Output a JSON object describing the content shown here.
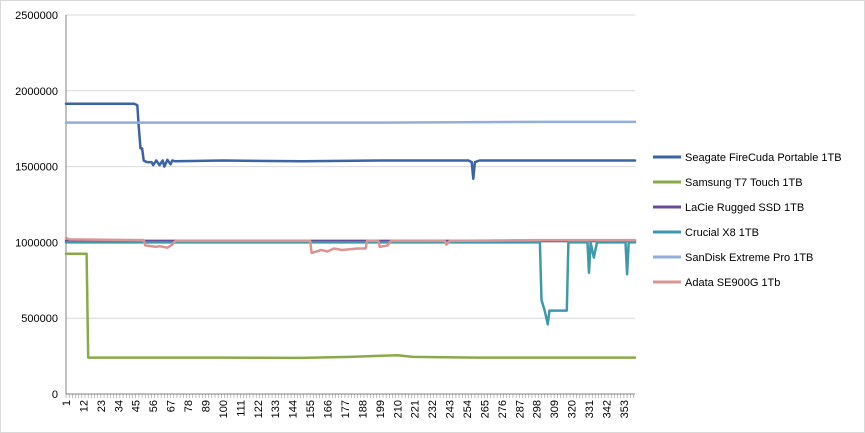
{
  "chart_data": {
    "type": "line",
    "title": "",
    "xlabel": "",
    "ylabel": "",
    "ylim": [
      0,
      2500000
    ],
    "yticks": [
      0,
      500000,
      1000000,
      1500000,
      2000000,
      2500000
    ],
    "ytick_labels": [
      "0",
      "500000",
      "1000000",
      "1500000",
      "2000000",
      "2500000"
    ],
    "x_range": [
      1,
      360
    ],
    "xticks": [
      1,
      12,
      23,
      34,
      45,
      56,
      67,
      78,
      89,
      100,
      111,
      122,
      133,
      144,
      155,
      166,
      177,
      188,
      199,
      210,
      221,
      232,
      243,
      254,
      265,
      276,
      287,
      298,
      309,
      320,
      331,
      342,
      353
    ],
    "xtick_labels": [
      "1",
      "12",
      "23",
      "34",
      "45",
      "56",
      "67",
      "78",
      "89",
      "100",
      "111",
      "122",
      "133",
      "144",
      "155",
      "166",
      "177",
      "188",
      "199",
      "210",
      "221",
      "232",
      "243",
      "254",
      "265",
      "276",
      "287",
      "298",
      "309",
      "320",
      "331",
      "342",
      "353"
    ],
    "grid": "horizontal",
    "legend_position": "right",
    "series": [
      {
        "name": "Seagate FireCuda Portable 1TB",
        "color": "#3b64a4",
        "points": [
          [
            1,
            1915000
          ],
          [
            44,
            1915000
          ],
          [
            46,
            1905000
          ],
          [
            47,
            1750000
          ],
          [
            48,
            1620000
          ],
          [
            49,
            1620000
          ],
          [
            50,
            1540000
          ],
          [
            52,
            1530000
          ],
          [
            55,
            1530000
          ],
          [
            56,
            1510000
          ],
          [
            58,
            1540000
          ],
          [
            60,
            1510000
          ],
          [
            62,
            1540000
          ],
          [
            63,
            1500000
          ],
          [
            65,
            1545000
          ],
          [
            67,
            1515000
          ],
          [
            68,
            1540000
          ],
          [
            70,
            1535000
          ],
          [
            100,
            1540000
          ],
          [
            150,
            1535000
          ],
          [
            200,
            1540000
          ],
          [
            255,
            1540000
          ],
          [
            257,
            1530000
          ],
          [
            258,
            1420000
          ],
          [
            259,
            1530000
          ],
          [
            262,
            1540000
          ],
          [
            300,
            1540000
          ],
          [
            340,
            1540000
          ],
          [
            360,
            1540000
          ]
        ]
      },
      {
        "name": "Samsung T7 Touch 1TB",
        "color": "#8aaa4a",
        "points": [
          [
            1,
            925000
          ],
          [
            14,
            925000
          ],
          [
            15,
            240000
          ],
          [
            50,
            240000
          ],
          [
            100,
            240000
          ],
          [
            150,
            238000
          ],
          [
            180,
            245000
          ],
          [
            200,
            252000
          ],
          [
            210,
            255000
          ],
          [
            220,
            245000
          ],
          [
            260,
            240000
          ],
          [
            300,
            240000
          ],
          [
            340,
            240000
          ],
          [
            360,
            240000
          ]
        ]
      },
      {
        "name": "LaCie Rugged SSD 1TB",
        "color": "#6b4c9a",
        "points": [
          [
            1,
            1010000
          ],
          [
            100,
            1010000
          ],
          [
            200,
            1010000
          ],
          [
            300,
            1010000
          ],
          [
            360,
            1010000
          ]
        ]
      },
      {
        "name": "Crucial X8 1TB",
        "color": "#3e9aaa",
        "points": [
          [
            1,
            1000000
          ],
          [
            300,
            1000000
          ],
          [
            301,
            620000
          ],
          [
            303,
            550000
          ],
          [
            305,
            460000
          ],
          [
            306,
            550000
          ],
          [
            317,
            550000
          ],
          [
            318,
            1000000
          ],
          [
            330,
            1000000
          ],
          [
            331,
            800000
          ],
          [
            332,
            1000000
          ],
          [
            334,
            900000
          ],
          [
            336,
            1000000
          ],
          [
            354,
            1000000
          ],
          [
            355,
            790000
          ],
          [
            356,
            1000000
          ],
          [
            360,
            1000000
          ]
        ]
      },
      {
        "name": "SanDisk Extreme Pro 1TB",
        "color": "#94aedb",
        "points": [
          [
            1,
            1790000
          ],
          [
            100,
            1790000
          ],
          [
            200,
            1790000
          ],
          [
            300,
            1795000
          ],
          [
            360,
            1795000
          ]
        ]
      },
      {
        "name": "Adata SE900G 1Tb",
        "color": "#d99594",
        "points": [
          [
            1,
            1030000
          ],
          [
            3,
            1020000
          ],
          [
            50,
            1015000
          ],
          [
            51,
            980000
          ],
          [
            58,
            970000
          ],
          [
            60,
            975000
          ],
          [
            65,
            965000
          ],
          [
            68,
            985000
          ],
          [
            70,
            1010000
          ],
          [
            155,
            1010000
          ],
          [
            156,
            930000
          ],
          [
            162,
            950000
          ],
          [
            166,
            940000
          ],
          [
            170,
            960000
          ],
          [
            175,
            950000
          ],
          [
            185,
            960000
          ],
          [
            190,
            960000
          ],
          [
            191,
            1010000
          ],
          [
            198,
            1010000
          ],
          [
            199,
            970000
          ],
          [
            204,
            980000
          ],
          [
            206,
            1010000
          ],
          [
            240,
            1010000
          ],
          [
            241,
            985000
          ],
          [
            243,
            1010000
          ],
          [
            300,
            1015000
          ],
          [
            360,
            1015000
          ]
        ]
      }
    ]
  }
}
